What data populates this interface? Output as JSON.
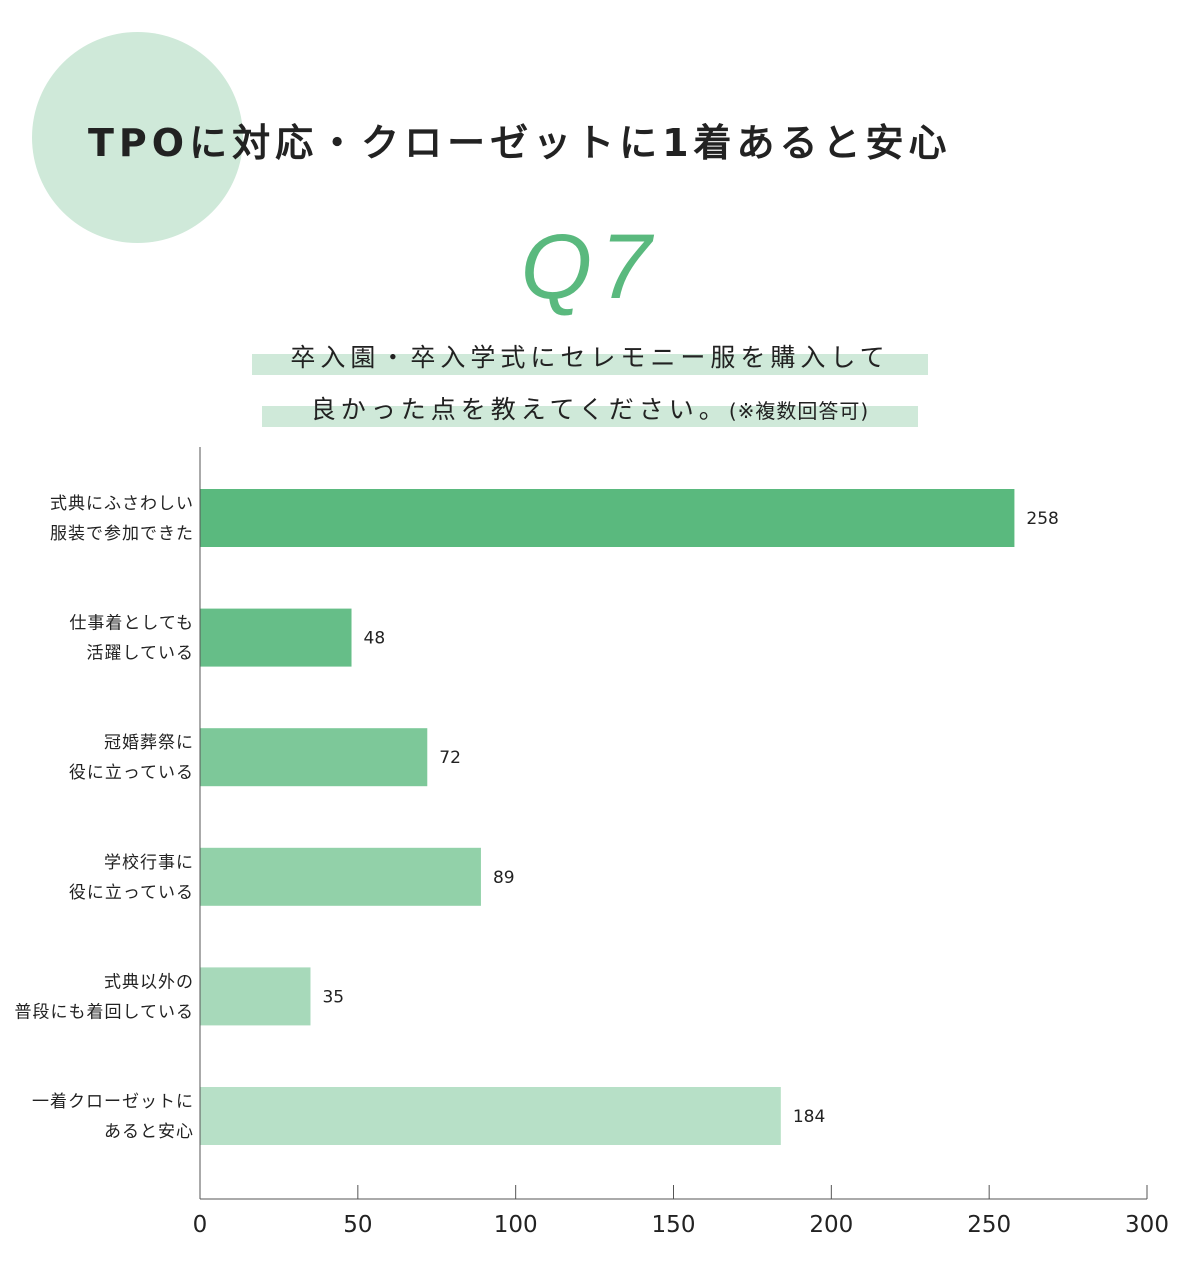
{
  "header": {
    "title": "TPOに対応・クローゼットに1着あると安心",
    "question_no": "Q7",
    "question_line1": "卒入園・卒入学式にセレモニー服を購入して",
    "question_line2": "良かった点を教えてください。",
    "question_note": "(※複数回答可)"
  },
  "chart_data": {
    "type": "bar",
    "orientation": "horizontal",
    "categories": [
      [
        "式典にふさわしい",
        "服装で参加できた"
      ],
      [
        "仕事着としても",
        "活躍している"
      ],
      [
        "冠婚葬祭に",
        "役に立っている"
      ],
      [
        "学校行事に",
        "役に立っている"
      ],
      [
        "式典以外の",
        "普段にも着回している"
      ],
      [
        "一着クローゼットに",
        "あると安心"
      ]
    ],
    "values": [
      258,
      48,
      72,
      89,
      35,
      184
    ],
    "colors": [
      "#5ab97e",
      "#66be88",
      "#7dc899",
      "#92d1a9",
      "#a7d9ba",
      "#b7e0c7"
    ],
    "xlim": [
      0,
      300
    ],
    "xticks": [
      "0",
      "50",
      "100",
      "150",
      "200",
      "250",
      "300"
    ],
    "grid": false
  }
}
